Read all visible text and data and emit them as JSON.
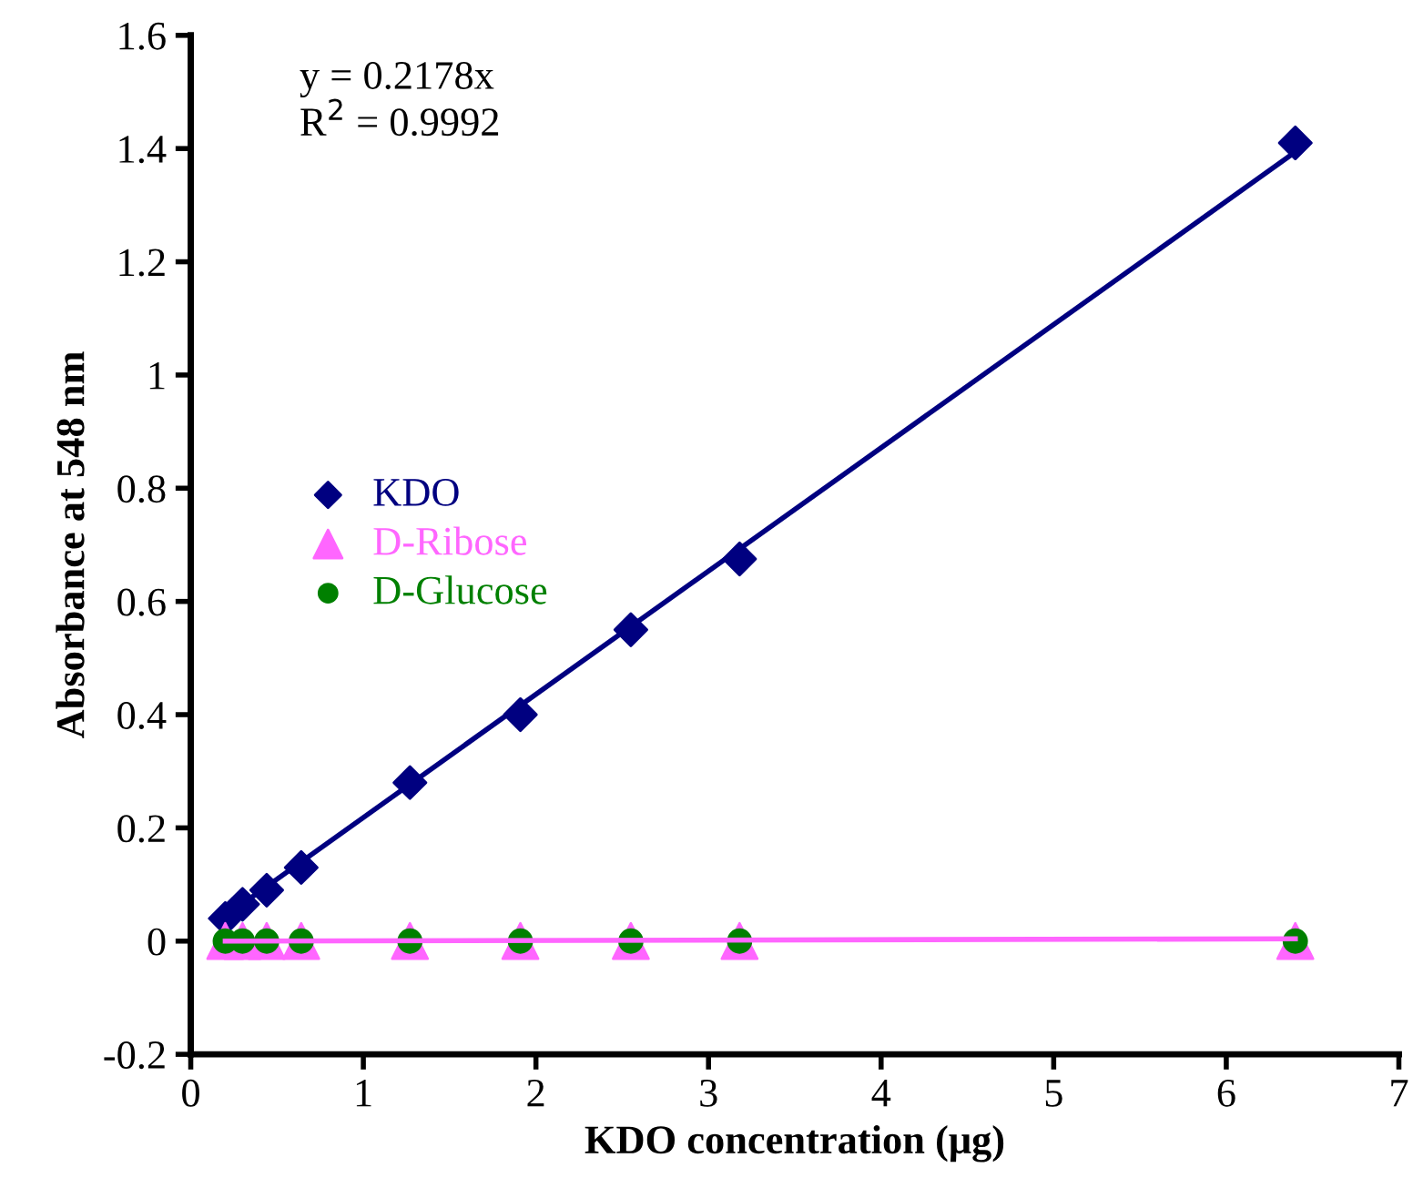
{
  "chart_data": {
    "type": "scatter",
    "xlabel": "KDO concentration (μg)",
    "ylabel": "Absorbance at 548 nm",
    "xlim": [
      0,
      7
    ],
    "xticks": [
      0,
      1,
      2,
      3,
      4,
      5,
      6,
      7
    ],
    "ylim": [
      -0.2,
      1.6
    ],
    "yticks": [
      {
        "value": -0.2,
        "label": "-0.2"
      },
      0,
      0.2,
      0.4,
      0.6,
      0.8,
      1,
      1.2,
      1.4,
      1.6
    ],
    "grid": false,
    "legend": "left",
    "annotations": [
      "y = 0.2178x",
      "R$^{2}$ = 0.9992"
    ],
    "series": [
      {
        "type": "line",
        "color": "#000080",
        "marker": "none",
        "x": [
          0.2,
          6.4
        ],
        "values": [
          0.044,
          1.394
        ]
      },
      {
        "type": "line",
        "color": "#ff66ff",
        "marker": "none",
        "x": [
          0.2,
          6.4
        ],
        "values": [
          0.0,
          0.004
        ]
      },
      {
        "name": "KDO",
        "color": "#000080",
        "marker": "diamond",
        "x": [
          0.2,
          0.3,
          0.44,
          0.64,
          1.27,
          1.91,
          2.55,
          3.18,
          6.4
        ],
        "values": [
          0.04,
          0.065,
          0.09,
          0.13,
          0.28,
          0.4,
          0.55,
          0.675,
          1.41
        ]
      },
      {
        "name": "D-Ribose",
        "color": "#ff66ff",
        "marker": "triangle",
        "x": [
          0.2,
          0.3,
          0.44,
          0.64,
          1.27,
          1.91,
          2.55,
          3.18,
          6.4
        ],
        "values": [
          0,
          0,
          0,
          0,
          0,
          0,
          0,
          0,
          0
        ]
      },
      {
        "name": "D-Glucose",
        "color": "#008000",
        "marker": "circle",
        "x": [
          0.2,
          0.3,
          0.44,
          0.64,
          1.27,
          1.91,
          2.55,
          3.18,
          6.4
        ],
        "values": [
          0,
          0,
          0,
          0,
          0,
          0,
          0,
          0,
          0
        ]
      }
    ]
  }
}
